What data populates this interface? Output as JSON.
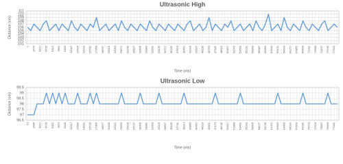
{
  "chart_data": [
    {
      "type": "line",
      "title": "Ultrasonic High",
      "x_label": "Time (ms)",
      "y_label": "Distance (cm)",
      "color": "#5b9bd5",
      "grid": true,
      "ylim": [
        101,
        111
      ],
      "yticks": [
        101,
        102,
        103,
        104,
        105,
        106,
        107,
        108,
        109,
        110,
        111
      ],
      "categories": [
        "1",
        null,
        "1579",
        null,
        "3157",
        null,
        "4735",
        null,
        "6313",
        null,
        "7891",
        null,
        "9469",
        null,
        "11047",
        null,
        "12625",
        null,
        "14203",
        null,
        "15781",
        null,
        "17359",
        null,
        "18937",
        null,
        "20515",
        null,
        "22093",
        null,
        "23671",
        null,
        "25249",
        null,
        "26827",
        null,
        "28405",
        null,
        "29983",
        null,
        "31561",
        null,
        "33139",
        null,
        "34717",
        null,
        "36295",
        null,
        "37873",
        null,
        "39451",
        null,
        "41029",
        null,
        "42607",
        null,
        "44185",
        null,
        "45763",
        null,
        "47341",
        null,
        "48919",
        null,
        "50497",
        null,
        "52075",
        null,
        "53653",
        null,
        "55231",
        null,
        "56809",
        null,
        "58387",
        null,
        "59965",
        null,
        "61543",
        null,
        "63121",
        null,
        "64699",
        null,
        "66277",
        null,
        "67855",
        null,
        "69433",
        null,
        "71011",
        null,
        "72589",
        null,
        "74167",
        null,
        "75745",
        null,
        "77323",
        null
      ],
      "values": [
        106,
        105,
        107,
        106,
        105,
        107,
        108,
        105,
        106,
        107,
        105,
        107,
        106,
        105,
        108,
        106,
        105,
        107,
        106,
        105,
        107,
        106,
        109,
        105,
        106,
        107,
        105,
        106,
        107,
        105,
        108,
        106,
        105,
        107,
        106,
        105,
        107,
        106,
        105,
        108,
        106,
        105,
        107,
        106,
        105,
        107,
        106,
        105,
        107,
        106,
        105,
        107,
        108,
        105,
        106,
        107,
        105,
        106,
        109,
        105,
        107,
        106,
        105,
        107,
        106,
        108,
        105,
        106,
        107,
        105,
        106,
        107,
        105,
        108,
        106,
        105,
        107,
        110,
        105,
        106,
        107,
        105,
        109,
        106,
        105,
        107,
        106,
        105,
        108,
        106,
        105,
        107,
        106,
        105,
        107,
        108,
        105,
        106,
        107,
        106
      ]
    },
    {
      "type": "line",
      "title": "Ultrasonic Low",
      "x_label": "Time (ms)",
      "y_label": "Distance (cm)",
      "color": "#5b9bd5",
      "grid": true,
      "ylim": [
        96.5,
        99.5
      ],
      "yticks": [
        96.5,
        97,
        97.5,
        98,
        98.5,
        99,
        99.5
      ],
      "categories": [
        "13",
        null,
        "1585",
        null,
        "3157",
        null,
        "4729",
        null,
        "6301",
        null,
        "7873",
        null,
        "9445",
        null,
        "11017",
        null,
        "12589",
        null,
        "14161",
        null,
        "15733",
        null,
        "17305",
        null,
        "18877",
        null,
        "20449",
        null,
        "22021",
        null,
        "23593",
        null,
        "25165",
        null,
        "26737",
        null,
        "28309",
        null,
        "29881",
        null,
        "31453",
        null,
        "33025",
        null,
        "34597",
        null,
        "36169",
        null,
        "37741",
        null,
        "39313",
        null,
        "40885",
        null,
        "42457",
        null,
        "44029",
        null,
        "45601",
        null,
        "47173",
        null,
        "48745",
        null,
        "50317",
        null,
        "51889",
        null,
        "53461",
        null,
        "55033",
        null,
        "56605",
        null,
        "58177",
        null,
        "59749",
        null,
        "61321",
        null,
        "62893",
        null,
        "64465",
        null,
        "66037",
        null,
        "67609",
        null,
        "69181",
        null,
        "70753",
        null,
        "72325",
        null,
        "73897",
        null,
        "75469",
        null,
        "77041",
        null
      ],
      "values": [
        97,
        97,
        97,
        98,
        98,
        98,
        99,
        98,
        99,
        98,
        99,
        98,
        99,
        98,
        98,
        98,
        99,
        98,
        98,
        98,
        99,
        98,
        99,
        98,
        98,
        98,
        98,
        98,
        98,
        98,
        99,
        98,
        98,
        98,
        98,
        98,
        99,
        98,
        98,
        98,
        98,
        98,
        99,
        98,
        98,
        98,
        98,
        98,
        98,
        98,
        99,
        98,
        98,
        98,
        98,
        98,
        98,
        98,
        98,
        98,
        99,
        98,
        98,
        98,
        98,
        98,
        98,
        98,
        99,
        98,
        98,
        98,
        98,
        98,
        98,
        98,
        98,
        98,
        98,
        98,
        99,
        98,
        98,
        98,
        98,
        98,
        98,
        98,
        99,
        98,
        98,
        98,
        98,
        98,
        98,
        98,
        99,
        98,
        98,
        98
      ]
    }
  ]
}
